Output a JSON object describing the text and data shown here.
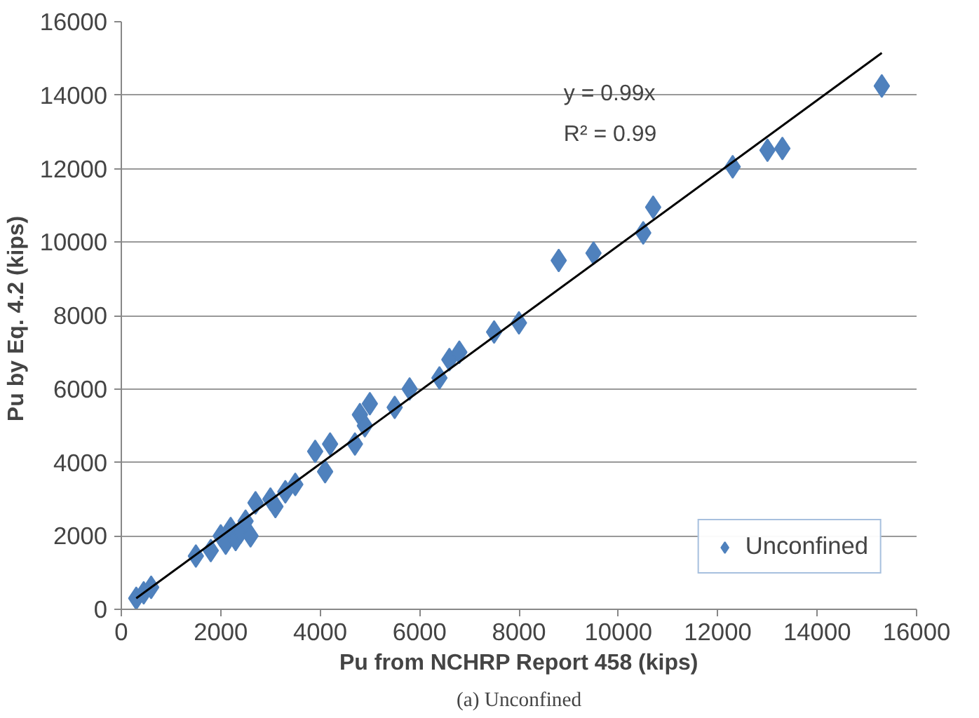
{
  "chart_data": {
    "type": "scatter",
    "xlabel": "Pu from NCHRP Report 458 (kips)",
    "ylabel": "Pu  by Eq. 4.2 (kips)",
    "annotations": [
      "y = 0.99x",
      "R² = 0.99",
      "(a) Unconfined"
    ],
    "xlim": [
      0,
      16000
    ],
    "xticks": [
      0,
      2000,
      4000,
      6000,
      8000,
      10000,
      12000,
      14000,
      16000
    ],
    "ylim": [
      0,
      16000
    ],
    "yticks": [
      0,
      2000,
      4000,
      6000,
      8000,
      10000,
      12000,
      14000,
      16000
    ],
    "grid": "y",
    "legend": "bottom right",
    "marker": "diamond",
    "series": [
      {
        "name": "Unconfined",
        "color": "#4f81bd",
        "x": [
          300,
          450,
          600,
          1500,
          1800,
          2000,
          2100,
          2200,
          2300,
          2400,
          2500,
          2600,
          2700,
          3000,
          3100,
          3300,
          3500,
          3900,
          4100,
          4200,
          4700,
          4800,
          4900,
          5000,
          5500,
          5800,
          6400,
          6600,
          6800,
          7500,
          8000,
          8800,
          9500,
          10500,
          10700,
          12300,
          13000,
          13300,
          15300
        ],
        "values": [
          300,
          450,
          600,
          1450,
          1600,
          2000,
          1800,
          2200,
          1900,
          2100,
          2400,
          2000,
          2900,
          3000,
          2800,
          3200,
          3400,
          4300,
          3750,
          4500,
          4500,
          5300,
          5000,
          5600,
          5500,
          6000,
          6300,
          6800,
          7000,
          7550,
          7800,
          9500,
          9700,
          10250,
          10950,
          12050,
          12500,
          12550,
          14250
        ]
      },
      {
        "type": "line",
        "color": "#000000",
        "x": [
          300,
          15300
        ],
        "values": [
          300,
          15150
        ],
        "marker": "none"
      }
    ]
  }
}
